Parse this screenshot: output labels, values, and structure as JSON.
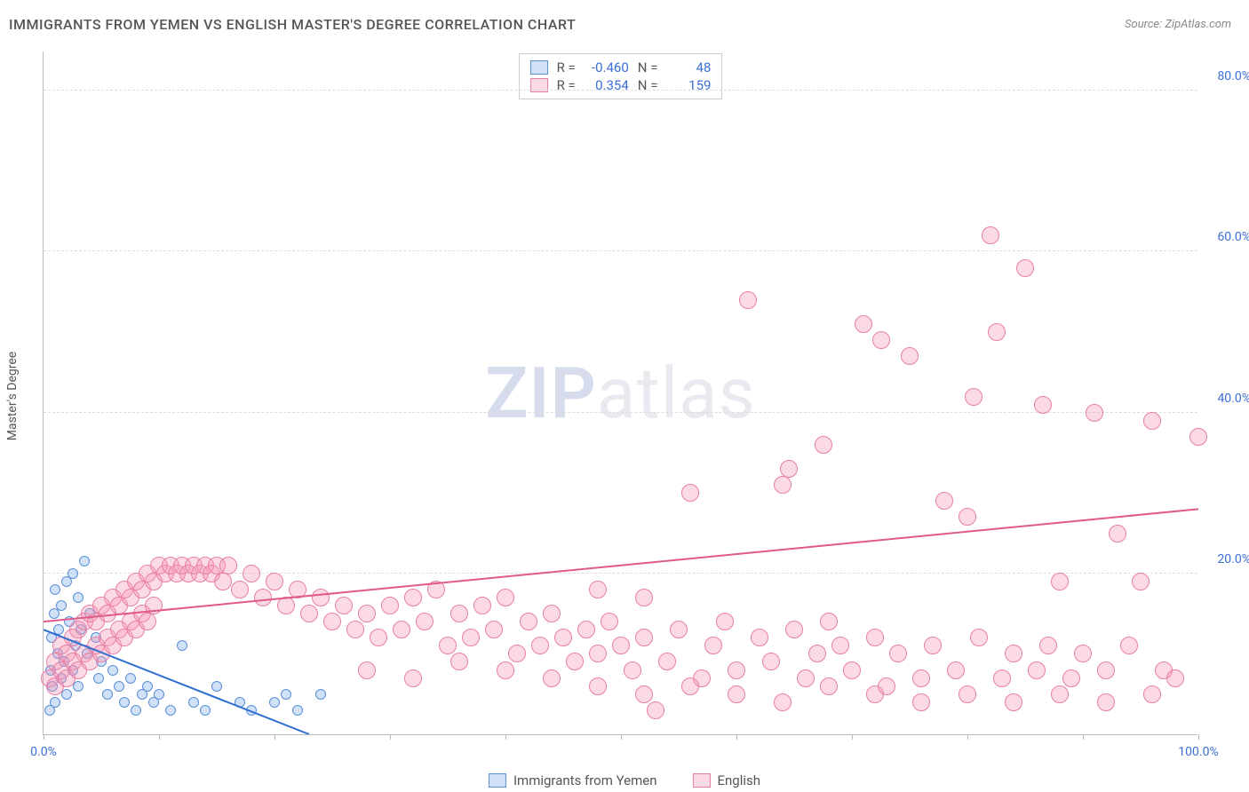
{
  "title": "IMMIGRANTS FROM YEMEN VS ENGLISH MASTER'S DEGREE CORRELATION CHART",
  "source_label": "Source:",
  "source_name": "ZipAtlas.com",
  "ylabel": "Master's Degree",
  "watermark_bold": "ZIP",
  "watermark_light": "atlas",
  "chart": {
    "type": "scatter",
    "xlim": [
      0,
      100
    ],
    "ylim": [
      0,
      85
    ],
    "yticks": [
      20,
      40,
      60,
      80
    ],
    "ytick_labels": [
      "20.0%",
      "40.0%",
      "60.0%",
      "80.0%"
    ],
    "xtick_marks": [
      0,
      10,
      20,
      30,
      40,
      50,
      60,
      70,
      80,
      90,
      100
    ],
    "xtick_labels": {
      "0": "0.0%",
      "100": "100.0%"
    },
    "grid_color": "#dddddd",
    "axis_color": "#bbbbbb",
    "background": "#ffffff",
    "marker_radius": 10,
    "marker_radius_small": 6
  },
  "series": [
    {
      "name": "Immigrants from Yemen",
      "fill": "rgba(120,170,235,0.35)",
      "stroke": "#5a8fd6",
      "line_color": "#2f6fd0",
      "R": "-0.460",
      "N": "48",
      "regression": {
        "x1": 0,
        "y1": 13,
        "x2": 23,
        "y2": 0
      },
      "points": [
        [
          0.5,
          3
        ],
        [
          0.6,
          8
        ],
        [
          0.7,
          12
        ],
        [
          0.8,
          6
        ],
        [
          0.9,
          15
        ],
        [
          1,
          18
        ],
        [
          1,
          4
        ],
        [
          1.2,
          10
        ],
        [
          1.3,
          13
        ],
        [
          1.5,
          7
        ],
        [
          1.5,
          16
        ],
        [
          1.8,
          9
        ],
        [
          2,
          19
        ],
        [
          2,
          5
        ],
        [
          2.2,
          14
        ],
        [
          2.5,
          20
        ],
        [
          2.5,
          8
        ],
        [
          2.8,
          11
        ],
        [
          3,
          17
        ],
        [
          3,
          6
        ],
        [
          3.2,
          13
        ],
        [
          3.5,
          21.5
        ],
        [
          3.8,
          10
        ],
        [
          4,
          15
        ],
        [
          4.5,
          12
        ],
        [
          4.8,
          7
        ],
        [
          5,
          9
        ],
        [
          5.5,
          5
        ],
        [
          6,
          8
        ],
        [
          6.5,
          6
        ],
        [
          7,
          4
        ],
        [
          7.5,
          7
        ],
        [
          8,
          3
        ],
        [
          8.5,
          5
        ],
        [
          9,
          6
        ],
        [
          9.5,
          4
        ],
        [
          10,
          5
        ],
        [
          11,
          3
        ],
        [
          12,
          11
        ],
        [
          13,
          4
        ],
        [
          14,
          3
        ],
        [
          15,
          6
        ],
        [
          17,
          4
        ],
        [
          18,
          3
        ],
        [
          20,
          4
        ],
        [
          21,
          5
        ],
        [
          22,
          3
        ],
        [
          24,
          5
        ]
      ]
    },
    {
      "name": "English",
      "fill": "rgba(245,150,180,0.35)",
      "stroke": "#e77fa5",
      "line_color": "#e05a8a",
      "R": "0.354",
      "N": "159",
      "regression": {
        "x1": 0,
        "y1": 14,
        "x2": 100,
        "y2": 28
      },
      "points": [
        [
          1,
          9
        ],
        [
          1.5,
          11
        ],
        [
          2,
          10
        ],
        [
          2.5,
          12
        ],
        [
          3,
          13
        ],
        [
          3.5,
          14
        ],
        [
          4,
          15
        ],
        [
          4.5,
          14
        ],
        [
          5,
          16
        ],
        [
          5.5,
          15
        ],
        [
          6,
          17
        ],
        [
          6.5,
          16
        ],
        [
          7,
          18
        ],
        [
          7.5,
          17
        ],
        [
          8,
          19
        ],
        [
          8.5,
          18
        ],
        [
          9,
          20
        ],
        [
          9.5,
          19
        ],
        [
          10,
          21
        ],
        [
          10.5,
          20
        ],
        [
          11,
          21
        ],
        [
          11.5,
          20
        ],
        [
          12,
          21
        ],
        [
          12.5,
          20
        ],
        [
          13,
          21
        ],
        [
          13.5,
          20
        ],
        [
          14,
          21
        ],
        [
          14.5,
          20
        ],
        [
          15,
          21
        ],
        [
          15.5,
          19
        ],
        [
          16,
          21
        ],
        [
          17,
          18
        ],
        [
          18,
          20
        ],
        [
          19,
          17
        ],
        [
          20,
          19
        ],
        [
          21,
          16
        ],
        [
          22,
          18
        ],
        [
          23,
          15
        ],
        [
          24,
          17
        ],
        [
          25,
          14
        ],
        [
          26,
          16
        ],
        [
          27,
          13
        ],
        [
          28,
          15
        ],
        [
          29,
          12
        ],
        [
          30,
          16
        ],
        [
          31,
          13
        ],
        [
          32,
          17
        ],
        [
          33,
          14
        ],
        [
          34,
          18
        ],
        [
          35,
          11
        ],
        [
          36,
          15
        ],
        [
          37,
          12
        ],
        [
          38,
          16
        ],
        [
          39,
          13
        ],
        [
          40,
          17
        ],
        [
          41,
          10
        ],
        [
          42,
          14
        ],
        [
          43,
          11
        ],
        [
          44,
          15
        ],
        [
          45,
          12
        ],
        [
          46,
          9
        ],
        [
          47,
          13
        ],
        [
          48,
          10
        ],
        [
          49,
          14
        ],
        [
          50,
          11
        ],
        [
          51,
          8
        ],
        [
          52,
          12
        ],
        [
          53,
          3
        ],
        [
          54,
          9
        ],
        [
          55,
          13
        ],
        [
          56,
          30
        ],
        [
          57,
          7
        ],
        [
          58,
          11
        ],
        [
          59,
          14
        ],
        [
          60,
          8
        ],
        [
          61,
          54
        ],
        [
          62,
          12
        ],
        [
          63,
          9
        ],
        [
          64,
          31
        ],
        [
          64.5,
          33
        ],
        [
          65,
          13
        ],
        [
          66,
          7
        ],
        [
          67,
          10
        ],
        [
          67.5,
          36
        ],
        [
          68,
          14
        ],
        [
          69,
          11
        ],
        [
          70,
          8
        ],
        [
          71,
          51
        ],
        [
          72,
          12
        ],
        [
          72.5,
          49
        ],
        [
          73,
          6
        ],
        [
          74,
          10
        ],
        [
          75,
          47
        ],
        [
          76,
          7
        ],
        [
          77,
          11
        ],
        [
          78,
          29
        ],
        [
          79,
          8
        ],
        [
          80,
          27
        ],
        [
          80.5,
          42
        ],
        [
          81,
          12
        ],
        [
          82,
          62
        ],
        [
          82.5,
          50
        ],
        [
          83,
          7
        ],
        [
          84,
          10
        ],
        [
          85,
          58
        ],
        [
          86,
          8
        ],
        [
          86.5,
          41
        ],
        [
          87,
          11
        ],
        [
          88,
          19
        ],
        [
          89,
          7
        ],
        [
          90,
          10
        ],
        [
          91,
          40
        ],
        [
          92,
          8
        ],
        [
          93,
          25
        ],
        [
          94,
          11
        ],
        [
          95,
          19
        ],
        [
          96,
          39
        ],
        [
          97,
          8
        ],
        [
          98,
          7
        ],
        [
          100,
          37
        ],
        [
          0.5,
          7
        ],
        [
          1,
          6
        ],
        [
          1.5,
          8
        ],
        [
          2,
          7
        ],
        [
          2.5,
          9
        ],
        [
          3,
          8
        ],
        [
          3.5,
          10
        ],
        [
          4,
          9
        ],
        [
          4.5,
          11
        ],
        [
          5,
          10
        ],
        [
          5.5,
          12
        ],
        [
          6,
          11
        ],
        [
          6.5,
          13
        ],
        [
          7,
          12
        ],
        [
          7.5,
          14
        ],
        [
          8,
          13
        ],
        [
          8.5,
          15
        ],
        [
          9,
          14
        ],
        [
          9.5,
          16
        ],
        [
          28,
          8
        ],
        [
          32,
          7
        ],
        [
          36,
          9
        ],
        [
          40,
          8
        ],
        [
          44,
          7
        ],
        [
          48,
          6
        ],
        [
          52,
          5
        ],
        [
          56,
          6
        ],
        [
          60,
          5
        ],
        [
          64,
          4
        ],
        [
          68,
          6
        ],
        [
          72,
          5
        ],
        [
          76,
          4
        ],
        [
          80,
          5
        ],
        [
          84,
          4
        ],
        [
          88,
          5
        ],
        [
          92,
          4
        ],
        [
          96,
          5
        ],
        [
          48,
          18
        ],
        [
          52,
          17
        ]
      ]
    }
  ],
  "bottom_legend": [
    {
      "label": "Immigrants from Yemen",
      "fill": "rgba(120,170,235,0.35)",
      "stroke": "#5a8fd6"
    },
    {
      "label": "English",
      "fill": "rgba(245,150,180,0.35)",
      "stroke": "#e77fa5"
    }
  ]
}
